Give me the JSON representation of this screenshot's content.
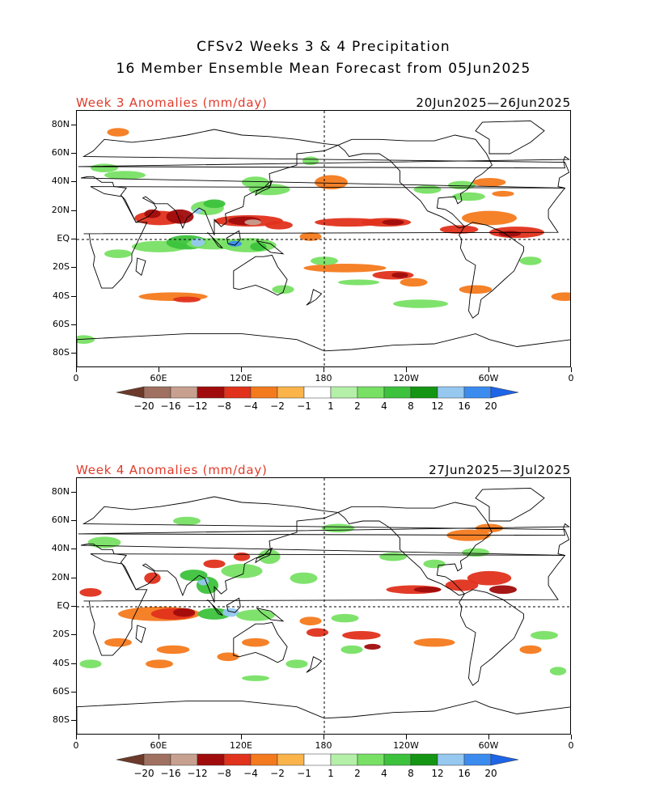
{
  "header": {
    "line1": "CFSv2 Weeks 3 & 4 Precipitation",
    "line2": "16 Member Ensemble Mean Forecast from 05Jun2025"
  },
  "panels": [
    {
      "label": "Week 3 Anomalies (mm/day)",
      "dates": "20Jun2025—26Jun2025"
    },
    {
      "label": "Week 4 Anomalies (mm/day)",
      "dates": "27Jun2025—3Jul2025"
    }
  ],
  "axes": {
    "lat_labels": [
      "80N",
      "60N",
      "40N",
      "20N",
      "EQ",
      "20S",
      "40S",
      "60S",
      "80S"
    ],
    "lon_labels": [
      "0",
      "60E",
      "120E",
      "180",
      "120W",
      "60W",
      "0"
    ]
  },
  "colorbar": {
    "labels": [
      "−20",
      "−16",
      "−12",
      "−8",
      "−4",
      "−2",
      "−1",
      "1",
      "2",
      "4",
      "8",
      "12",
      "16",
      "20"
    ],
    "colors": [
      "#6b3a2a",
      "#a07060",
      "#c8a090",
      "#a00c0c",
      "#e0321c",
      "#f47a1e",
      "#fab44a",
      "#ffffff",
      "#b4f0a8",
      "#78e064",
      "#3cc23c",
      "#149614",
      "#96c8f0",
      "#3c8cf0",
      "#1e64e6"
    ]
  },
  "palette": {
    "land_outline": "#000000",
    "title_red": "#e03a2a"
  }
}
